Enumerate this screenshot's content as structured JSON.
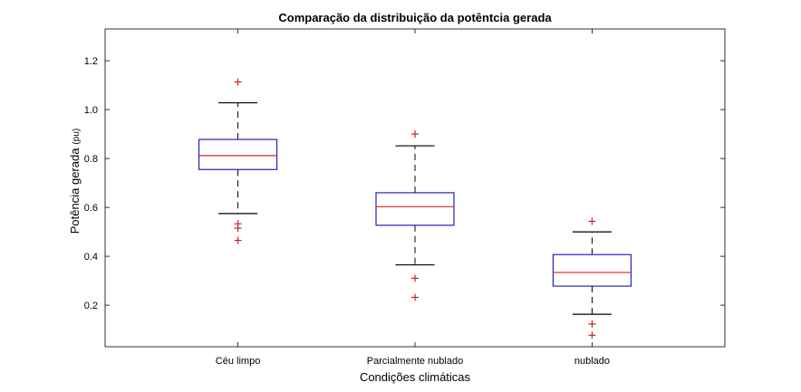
{
  "chart_data": {
    "type": "boxplot",
    "title": "Comparação da distribuição da potêntcia gerada",
    "xlabel": "Condições climáticas",
    "ylabel_main": "Potência gerada",
    "ylabel_unit": "(pu)",
    "ylim": [
      0.03,
      1.33
    ],
    "yticks": [
      "0.2",
      "0.4",
      "0.6",
      "0.8",
      "1.0",
      "1.2"
    ],
    "grid": false,
    "categories": [
      "Céu limpo",
      "Parcialmente nublado",
      "nublado"
    ],
    "boxes": [
      {
        "category": "Céu limpo",
        "whisker_low": 0.575,
        "q1": 0.755,
        "median": 0.812,
        "q3": 0.878,
        "whisker_high": 1.028,
        "outliers": [
          1.113,
          0.533,
          0.515,
          0.465
        ]
      },
      {
        "category": "Parcialmente nublado",
        "whisker_low": 0.365,
        "q1": 0.527,
        "median": 0.603,
        "q3": 0.66,
        "whisker_high": 0.852,
        "outliers": [
          0.9,
          0.31,
          0.232
        ]
      },
      {
        "category": "nublado",
        "whisker_low": 0.163,
        "q1": 0.278,
        "median": 0.334,
        "q3": 0.407,
        "whisker_high": 0.5,
        "outliers": [
          0.543,
          0.123,
          0.077
        ]
      }
    ],
    "colors": {
      "box": "#2222bb",
      "median": "#dd2222",
      "whisker": "#000000",
      "outlier": "#cc2222"
    }
  }
}
